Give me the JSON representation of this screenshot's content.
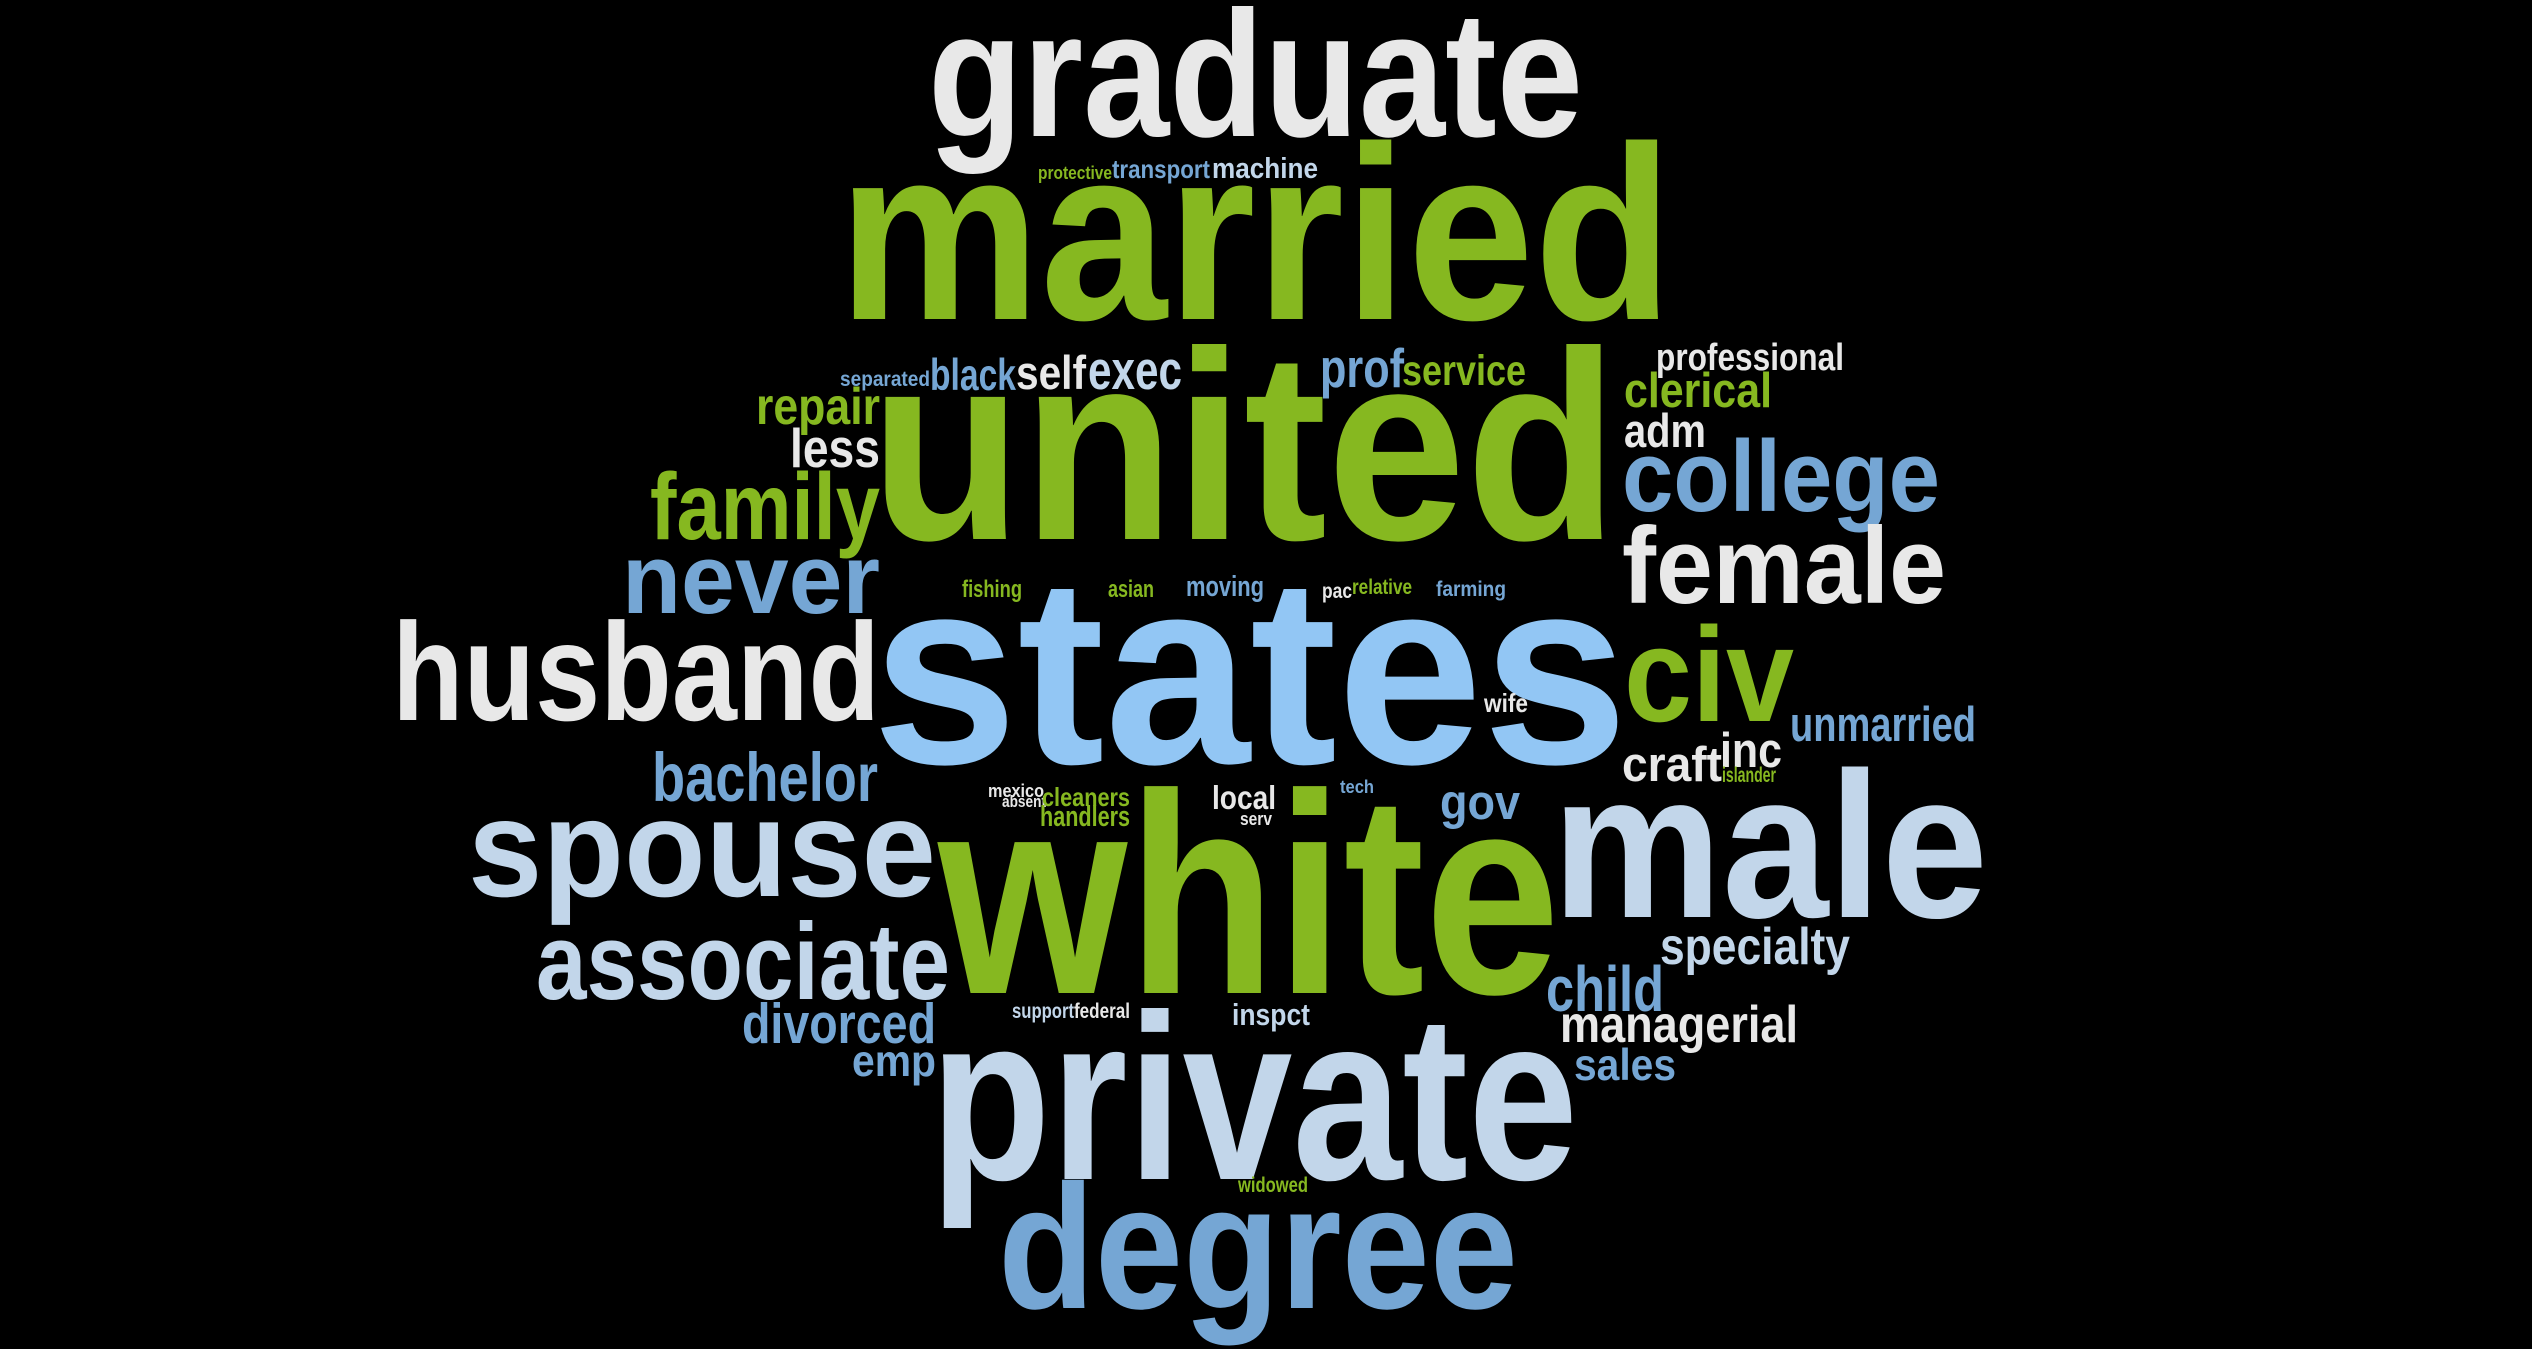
{
  "palette": {
    "green": "#86b820",
    "blue": "#75a6d4",
    "light_blue": "#92c6f4",
    "pale_blue": "#c2d6ea",
    "white": "#e8e8e8",
    "background": "#000000"
  },
  "words": [
    {
      "text": "graduate",
      "color": "#e8e8e8"
    },
    {
      "text": "married",
      "color": "#86b820"
    },
    {
      "text": "protective",
      "color": "#86b820"
    },
    {
      "text": "transport",
      "color": "#75a6d4"
    },
    {
      "text": "machine",
      "color": "#c2d6ea"
    },
    {
      "text": "professional",
      "color": "#e8e8e8"
    },
    {
      "text": "separated",
      "color": "#75a6d4"
    },
    {
      "text": "black",
      "color": "#75a6d4"
    },
    {
      "text": "self",
      "color": "#e8e8e8"
    },
    {
      "text": "exec",
      "color": "#c2d6ea"
    },
    {
      "text": "prof",
      "color": "#75a6d4"
    },
    {
      "text": "service",
      "color": "#86b820"
    },
    {
      "text": "clerical",
      "color": "#86b820"
    },
    {
      "text": "repair",
      "color": "#86b820"
    },
    {
      "text": "united",
      "color": "#86b820"
    },
    {
      "text": "adm",
      "color": "#e8e8e8"
    },
    {
      "text": "less",
      "color": "#e8e8e8"
    },
    {
      "text": "college",
      "color": "#75a6d4"
    },
    {
      "text": "family",
      "color": "#86b820"
    },
    {
      "text": "female",
      "color": "#e8e8e8"
    },
    {
      "text": "never",
      "color": "#75a6d4"
    },
    {
      "text": "fishing",
      "color": "#86b820"
    },
    {
      "text": "asian",
      "color": "#86b820"
    },
    {
      "text": "moving",
      "color": "#75a6d4"
    },
    {
      "text": "pac",
      "color": "#e8e8e8"
    },
    {
      "text": "relative",
      "color": "#86b820"
    },
    {
      "text": "farming",
      "color": "#75a6d4"
    },
    {
      "text": "husband",
      "color": "#e8e8e8"
    },
    {
      "text": "states",
      "color": "#92c6f4"
    },
    {
      "text": "civ",
      "color": "#86b820"
    },
    {
      "text": "wife",
      "color": "#e8e8e8"
    },
    {
      "text": "unmarried",
      "color": "#75a6d4"
    },
    {
      "text": "inc",
      "color": "#e8e8e8"
    },
    {
      "text": "craft",
      "color": "#e8e8e8"
    },
    {
      "text": "islander",
      "color": "#86b820"
    },
    {
      "text": "bachelor",
      "color": "#75a6d4"
    },
    {
      "text": "mexico",
      "color": "#e8e8e8"
    },
    {
      "text": "absent",
      "color": "#e8e8e8"
    },
    {
      "text": "cleaners",
      "color": "#86b820"
    },
    {
      "text": "handlers",
      "color": "#86b820"
    },
    {
      "text": "local",
      "color": "#e8e8e8"
    },
    {
      "text": "serv",
      "color": "#e8e8e8"
    },
    {
      "text": "tech",
      "color": "#75a6d4"
    },
    {
      "text": "gov",
      "color": "#75a6d4"
    },
    {
      "text": "spouse",
      "color": "#c2d6ea"
    },
    {
      "text": "white",
      "color": "#86b820"
    },
    {
      "text": "male",
      "color": "#c2d6ea"
    },
    {
      "text": "specialty",
      "color": "#c2d6ea"
    },
    {
      "text": "associate",
      "color": "#c2d6ea"
    },
    {
      "text": "child",
      "color": "#75a6d4"
    },
    {
      "text": "support",
      "color": "#c2d6ea"
    },
    {
      "text": "federal",
      "color": "#e8e8e8"
    },
    {
      "text": "inspct",
      "color": "#c2d6ea"
    },
    {
      "text": "managerial",
      "color": "#e8e8e8"
    },
    {
      "text": "divorced",
      "color": "#75a6d4"
    },
    {
      "text": "emp",
      "color": "#75a6d4"
    },
    {
      "text": "sales",
      "color": "#75a6d4"
    },
    {
      "text": "private",
      "color": "#c2d6ea"
    },
    {
      "text": "widowed",
      "color": "#86b820"
    },
    {
      "text": "degree",
      "color": "#75a6d4"
    }
  ]
}
